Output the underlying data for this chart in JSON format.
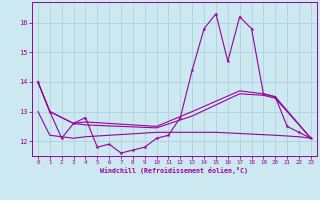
{
  "xlabel": "Windchill (Refroidissement éolien,°C)",
  "x_values": [
    0,
    1,
    2,
    3,
    4,
    5,
    6,
    7,
    8,
    9,
    10,
    11,
    12,
    13,
    14,
    15,
    16,
    17,
    18,
    19,
    20,
    21,
    22,
    23
  ],
  "line_main": [
    14.0,
    13.0,
    12.1,
    12.6,
    12.8,
    11.8,
    11.9,
    11.6,
    11.7,
    11.8,
    12.1,
    12.2,
    12.8,
    14.4,
    15.8,
    16.3,
    14.7,
    16.2,
    15.8,
    13.6,
    13.5,
    12.5,
    12.3,
    12.1
  ],
  "line2_x": [
    0,
    1,
    3,
    4,
    10,
    13,
    17,
    19,
    20,
    23
  ],
  "line2_y": [
    14.0,
    13.0,
    12.6,
    12.65,
    12.5,
    13.0,
    13.7,
    13.6,
    13.5,
    12.1
  ],
  "line3_x": [
    0,
    1,
    3,
    4,
    10,
    13,
    17,
    19,
    20,
    23
  ],
  "line3_y": [
    14.0,
    13.0,
    12.6,
    12.55,
    12.45,
    12.85,
    13.6,
    13.55,
    13.45,
    12.1
  ],
  "line4_x": [
    0,
    1,
    3,
    4,
    10,
    15,
    20,
    22,
    23
  ],
  "line4_y": [
    13.0,
    12.2,
    12.1,
    12.15,
    12.3,
    12.3,
    12.2,
    12.15,
    12.1
  ],
  "color": "#990099",
  "bg_color": "#cce8f0",
  "grid_color": "#aaccdd",
  "ylim": [
    11.5,
    16.7
  ],
  "yticks": [
    12,
    13,
    14,
    15,
    16
  ],
  "xticks": [
    0,
    1,
    2,
    3,
    4,
    5,
    6,
    7,
    8,
    9,
    10,
    11,
    12,
    13,
    14,
    15,
    16,
    17,
    18,
    19,
    20,
    21,
    22,
    23
  ]
}
